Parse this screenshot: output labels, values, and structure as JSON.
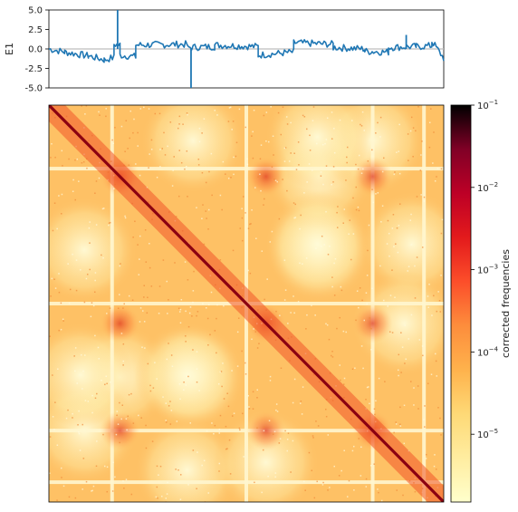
{
  "chart_data": [
    {
      "type": "line",
      "ylabel": "E1",
      "ylim": [
        -5.0,
        5.0
      ],
      "y_ticks": [
        "5.0",
        "2.5",
        "0.0",
        "-2.5",
        "-5.0"
      ],
      "y_tick_values": [
        5.0,
        2.5,
        0.0,
        -2.5,
        -5.0
      ],
      "x_range": [
        0,
        1
      ],
      "grid": false,
      "series_color": "#1f77b4",
      "baseline_color": "#bdbdbd",
      "segments": [
        {
          "x": [
            0.0,
            0.04
          ],
          "y": [
            0.0,
            -0.4
          ]
        },
        {
          "x": [
            0.04,
            0.1
          ],
          "y": [
            -0.4,
            -0.9
          ]
        },
        {
          "x": [
            0.1,
            0.14
          ],
          "y": [
            -0.9,
            -1.4
          ]
        },
        {
          "x": [
            0.14,
            0.165
          ],
          "y": [
            -1.4,
            -1.1
          ]
        },
        {
          "x": [
            0.165,
            0.18
          ],
          "y": [
            0.6,
            0.5
          ]
        },
        {
          "x": [
            0.18,
            0.22
          ],
          "y": [
            -0.8,
            -1.0
          ]
        },
        {
          "x": [
            0.22,
            0.35
          ],
          "y": [
            0.5,
            0.6
          ]
        },
        {
          "x": [
            0.35,
            0.42
          ],
          "y": [
            0.2,
            0.3
          ]
        },
        {
          "x": [
            0.42,
            0.53
          ],
          "y": [
            0.5,
            0.3
          ]
        },
        {
          "x": [
            0.53,
            0.62
          ],
          "y": [
            -0.8,
            -0.4
          ]
        },
        {
          "x": [
            0.62,
            0.72
          ],
          "y": [
            0.8,
            0.6
          ]
        },
        {
          "x": [
            0.72,
            0.8
          ],
          "y": [
            0.2,
            0.0
          ]
        },
        {
          "x": [
            0.8,
            0.86
          ],
          "y": [
            -0.3,
            -0.4
          ]
        },
        {
          "x": [
            0.86,
            0.93
          ],
          "y": [
            0.2,
            0.3
          ]
        },
        {
          "x": [
            0.93,
            0.97
          ],
          "y": [
            0.3,
            0.4
          ]
        },
        {
          "x": [
            0.97,
            1.0
          ],
          "y": [
            1.0,
            -1.2
          ]
        }
      ],
      "spikes": [
        {
          "x": 0.174,
          "y": 5.0
        },
        {
          "x": 0.36,
          "y": -5.0
        },
        {
          "x": 0.905,
          "y": 1.8
        }
      ]
    },
    {
      "type": "heatmap",
      "colorbar": {
        "label": "corrected frequencies",
        "scale": "log",
        "range": [
          1.5e-06,
          0.1
        ],
        "tick_values": [
          0.1,
          0.01,
          0.001,
          0.0001,
          1e-05
        ],
        "tick_bases": [
          "10",
          "10",
          "10",
          "10",
          "10"
        ],
        "tick_exponents": [
          "−1",
          "−2",
          "−3",
          "−4",
          "−5"
        ],
        "colormap": [
          "#ffffcc",
          "#ffeda0",
          "#fed976",
          "#feb24c",
          "#fd8d3c",
          "#fc4e2a",
          "#e31a1c",
          "#bd0026",
          "#800026",
          "#000000"
        ]
      },
      "background_color": "#fec165",
      "diagonal_color": "#8b0011",
      "interaction_centers": [
        0.18,
        0.55,
        0.82
      ],
      "gap_rows": [
        0.16,
        0.5,
        0.82,
        0.95
      ],
      "x_ticks": [],
      "y_ticks": []
    }
  ]
}
